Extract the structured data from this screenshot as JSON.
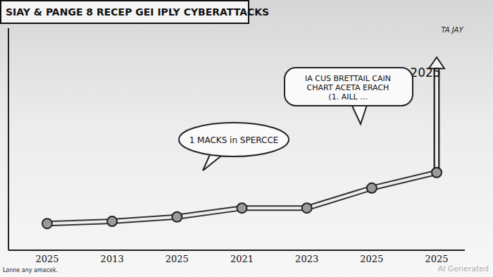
{
  "chart_data": {
    "type": "line",
    "title": "SIAY & PANGE 8 RECEP GEI IPLY CYBERATTACKS",
    "categories": [
      "2025",
      "2013",
      "2025",
      "2021",
      "2023",
      "2025",
      "2025"
    ],
    "values": [
      12,
      13,
      15,
      19,
      19,
      28,
      35
    ],
    "color": "#555555",
    "marker": "circle",
    "ylim": [
      0,
      100
    ],
    "tick_labels": "x",
    "grid": false,
    "annotations": [
      {
        "text": "1 MACKS in SPERCCE"
      },
      {
        "text": [
          "IA CUS BRETTAIL CAIN",
          "CHART ACETA ERACH",
          "(1. AILL ..."
        ]
      },
      {
        "text": "TA JAY"
      },
      {
        "text": "2025",
        "arrow_to": 85
      }
    ],
    "note": "Lonne any amacek.",
    "watermark": "AI Generated"
  }
}
